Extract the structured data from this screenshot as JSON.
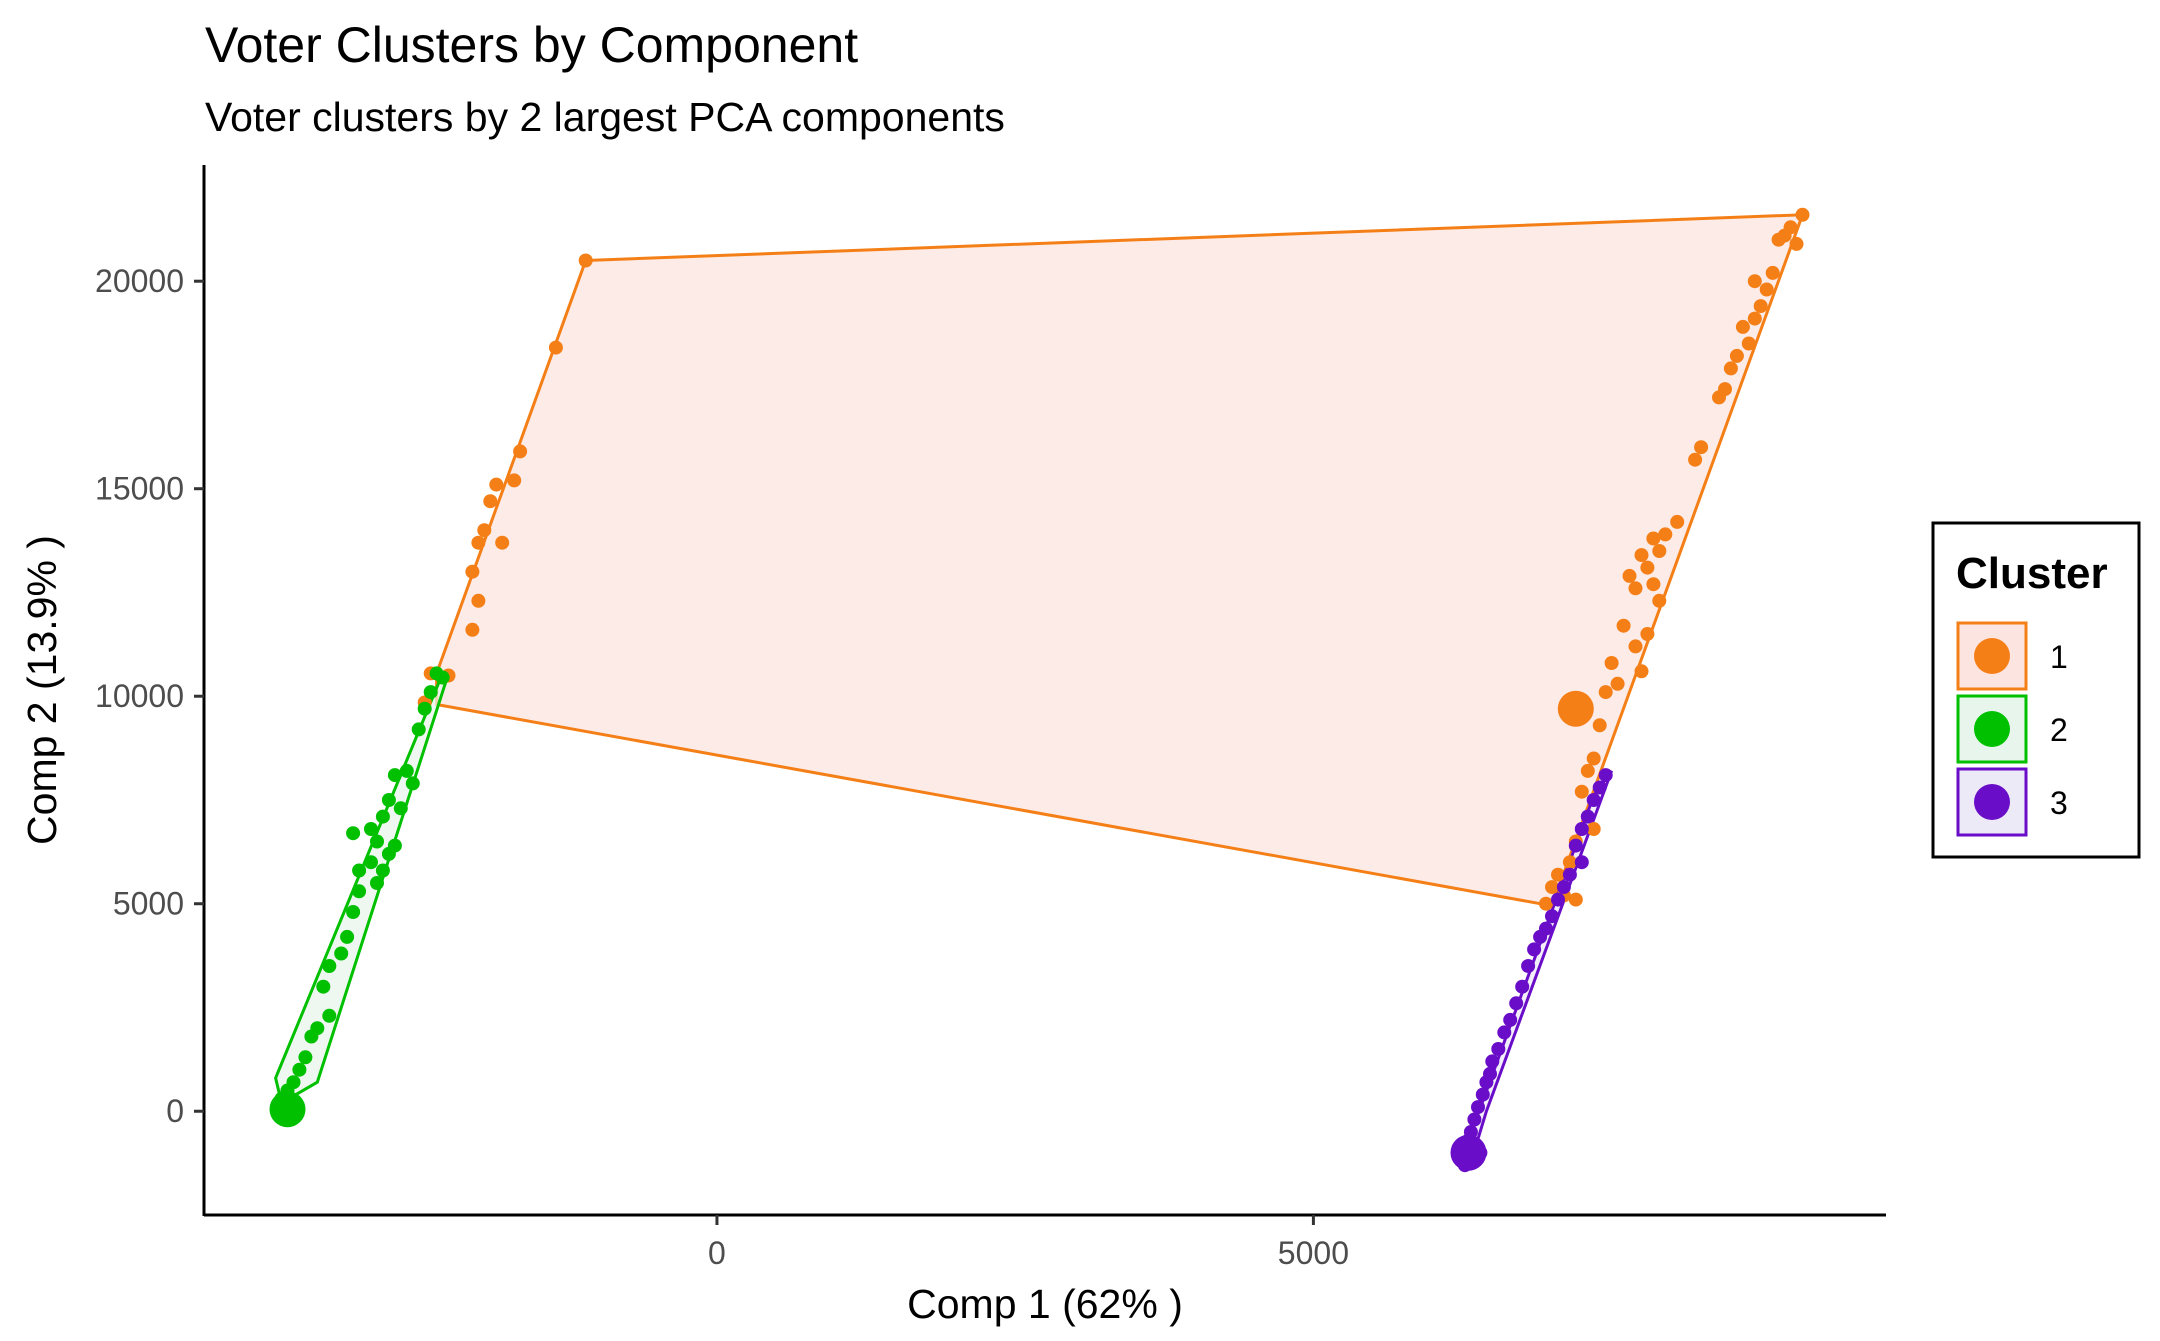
{
  "chart_data": {
    "type": "scatter",
    "title": "Voter Clusters by Component",
    "subtitle": "Voter clusters by 2 largest PCA components",
    "xlabel": "Comp 1 (62% )",
    "ylabel": "Comp 2 (13.9% )",
    "xlim": [
      -4300,
      9800
    ],
    "ylim": [
      -2500,
      22800
    ],
    "x_ticks": [
      0,
      5000
    ],
    "y_ticks": [
      0,
      5000,
      10000,
      15000,
      20000
    ],
    "grid": false,
    "legend": {
      "title": "Cluster",
      "placement": "right",
      "entries": [
        "1",
        "2",
        "3"
      ]
    },
    "series": [
      {
        "name": "1",
        "color": "#F57F17",
        "fill": "#FCE4E0",
        "centroid": [
          7200,
          9700
        ],
        "hull": [
          [
            -1100,
            20500
          ],
          [
            9100,
            21600
          ],
          [
            7000,
            4950
          ],
          [
            -2350,
            9800
          ],
          [
            -2350,
            10550
          ]
        ],
        "points": [
          [
            -1100,
            20500
          ],
          [
            -1350,
            18400
          ],
          [
            -1650,
            15900
          ],
          [
            -1850,
            15100
          ],
          [
            -1700,
            15200
          ],
          [
            -1900,
            14700
          ],
          [
            -2000,
            13700
          ],
          [
            -1950,
            14000
          ],
          [
            -1800,
            13700
          ],
          [
            -2050,
            13000
          ],
          [
            -2000,
            12300
          ],
          [
            -2050,
            11600
          ],
          [
            -2400,
            10550
          ],
          [
            -2250,
            10500
          ],
          [
            -2450,
            9850
          ],
          [
            9100,
            21600
          ],
          [
            9000,
            21300
          ],
          [
            9050,
            20900
          ],
          [
            8950,
            21100
          ],
          [
            8900,
            21000
          ],
          [
            8850,
            20200
          ],
          [
            8700,
            20000
          ],
          [
            8800,
            19800
          ],
          [
            8750,
            19400
          ],
          [
            8700,
            19100
          ],
          [
            8600,
            18900
          ],
          [
            8650,
            18500
          ],
          [
            8550,
            18200
          ],
          [
            8500,
            17900
          ],
          [
            8450,
            17400
          ],
          [
            8400,
            17200
          ],
          [
            8250,
            16000
          ],
          [
            8200,
            15700
          ],
          [
            8050,
            14200
          ],
          [
            7950,
            13900
          ],
          [
            7850,
            13800
          ],
          [
            7900,
            13500
          ],
          [
            7750,
            13400
          ],
          [
            7800,
            13100
          ],
          [
            7650,
            12900
          ],
          [
            7850,
            12700
          ],
          [
            7700,
            12600
          ],
          [
            7900,
            12300
          ],
          [
            7600,
            11700
          ],
          [
            7800,
            11500
          ],
          [
            7700,
            11200
          ],
          [
            7750,
            10600
          ],
          [
            7500,
            10800
          ],
          [
            7550,
            10300
          ],
          [
            7450,
            10100
          ],
          [
            7400,
            9300
          ],
          [
            7350,
            8500
          ],
          [
            7300,
            8200
          ],
          [
            7250,
            7700
          ],
          [
            7350,
            6800
          ],
          [
            7200,
            6500
          ],
          [
            7150,
            6000
          ],
          [
            7050,
            5700
          ],
          [
            7000,
            5400
          ],
          [
            7100,
            5200
          ],
          [
            7200,
            5100
          ],
          [
            6950,
            5000
          ]
        ]
      },
      {
        "name": "2",
        "color": "#00C000",
        "fill": "#E8F5EC",
        "centroid": [
          -3600,
          50
        ],
        "hull": [
          [
            -2300,
            10550
          ],
          [
            -2250,
            10550
          ],
          [
            -3350,
            700
          ],
          [
            -3650,
            200
          ],
          [
            -3700,
            800
          ]
        ],
        "points": [
          [
            -2350,
            10550
          ],
          [
            -2300,
            10450
          ],
          [
            -2400,
            10100
          ],
          [
            -2450,
            9700
          ],
          [
            -2500,
            9200
          ],
          [
            -2600,
            8200
          ],
          [
            -2700,
            8100
          ],
          [
            -2550,
            7900
          ],
          [
            -2750,
            7500
          ],
          [
            -2650,
            7300
          ],
          [
            -2800,
            7100
          ],
          [
            -2900,
            6800
          ],
          [
            -3050,
            6700
          ],
          [
            -2700,
            6400
          ],
          [
            -2850,
            6500
          ],
          [
            -2750,
            6200
          ],
          [
            -2900,
            6000
          ],
          [
            -2800,
            5800
          ],
          [
            -3000,
            5800
          ],
          [
            -2850,
            5500
          ],
          [
            -3000,
            5300
          ],
          [
            -3050,
            4800
          ],
          [
            -3100,
            4200
          ],
          [
            -3150,
            3800
          ],
          [
            -3250,
            3500
          ],
          [
            -3300,
            3000
          ],
          [
            -3250,
            2300
          ],
          [
            -3350,
            2000
          ],
          [
            -3400,
            1800
          ],
          [
            -3450,
            1300
          ],
          [
            -3500,
            1000
          ],
          [
            -3550,
            700
          ],
          [
            -3600,
            500
          ],
          [
            -3650,
            300
          ],
          [
            -3600,
            100
          ]
        ]
      },
      {
        "name": "3",
        "color": "#6A0DC8",
        "fill": "#EDEAF8",
        "centroid": [
          6300,
          -1000
        ],
        "hull": [
          [
            7500,
            8200
          ],
          [
            7350,
            7600
          ],
          [
            6250,
            -1100
          ],
          [
            6350,
            -950
          ],
          [
            6450,
            0
          ]
        ],
        "points": [
          [
            7450,
            8100
          ],
          [
            7400,
            7800
          ],
          [
            7350,
            7500
          ],
          [
            7300,
            7100
          ],
          [
            7250,
            6800
          ],
          [
            7200,
            6400
          ],
          [
            7250,
            6000
          ],
          [
            7150,
            5700
          ],
          [
            7100,
            5400
          ],
          [
            7050,
            5100
          ],
          [
            7000,
            4700
          ],
          [
            6950,
            4400
          ],
          [
            6900,
            4200
          ],
          [
            6850,
            3900
          ],
          [
            6800,
            3500
          ],
          [
            6750,
            3000
          ],
          [
            6700,
            2600
          ],
          [
            6650,
            2200
          ],
          [
            6600,
            1900
          ],
          [
            6550,
            1500
          ],
          [
            6500,
            1200
          ],
          [
            6480,
            900
          ],
          [
            6450,
            700
          ],
          [
            6420,
            400
          ],
          [
            6380,
            100
          ],
          [
            6350,
            -200
          ],
          [
            6320,
            -500
          ],
          [
            6300,
            -700
          ],
          [
            6280,
            -900
          ],
          [
            6250,
            -1100
          ],
          [
            6270,
            -1300
          ],
          [
            6320,
            -1200
          ],
          [
            6400,
            -1000
          ]
        ]
      }
    ]
  }
}
